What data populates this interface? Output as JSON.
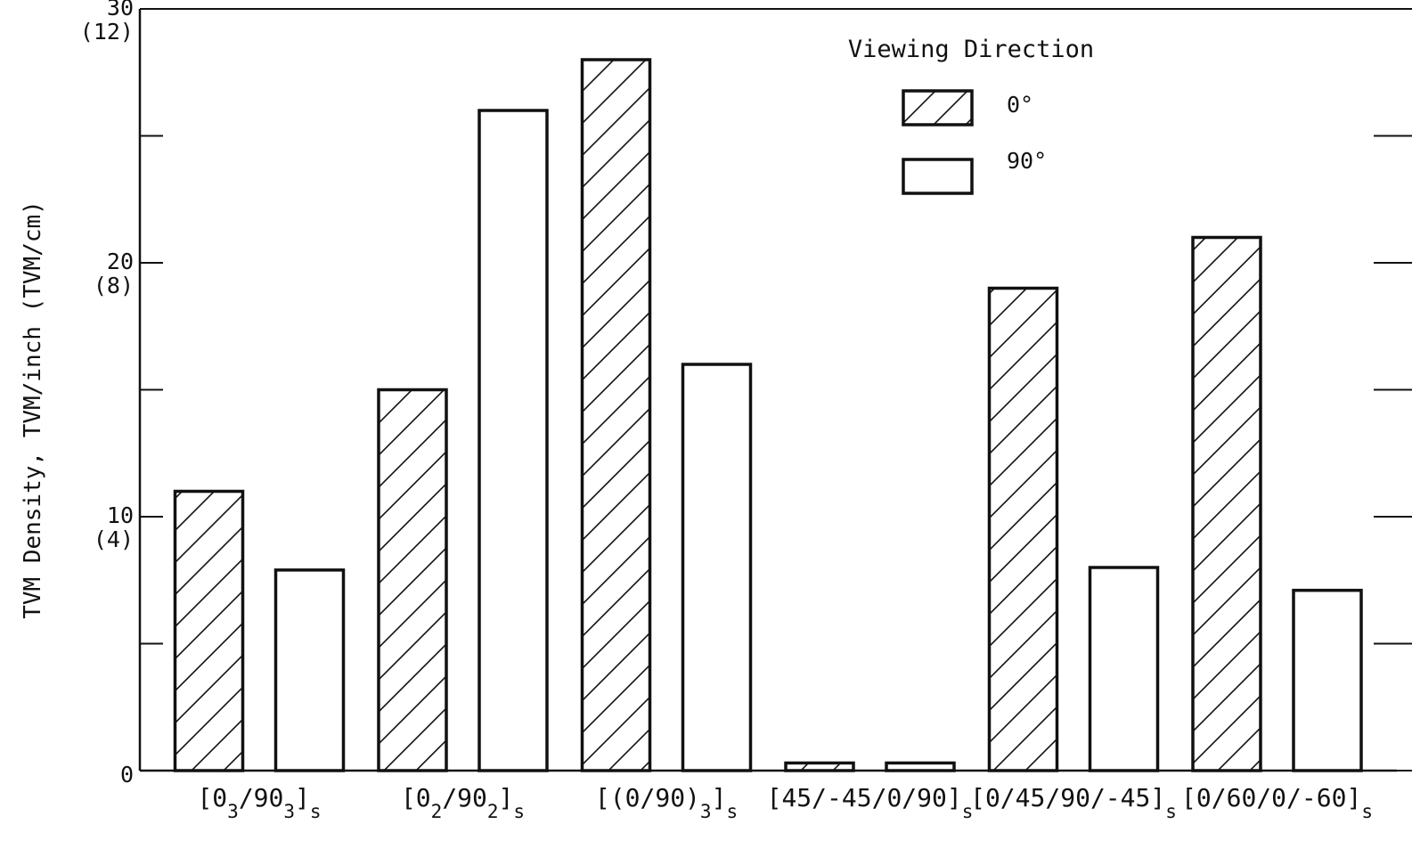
{
  "chart_data": {
    "type": "bar",
    "ylabel": "TVM Density, TVM/inch (TVM/cm)",
    "ylim": [
      0,
      30
    ],
    "yticks": [
      {
        "value": 30,
        "label": "30",
        "secondary": "(12)"
      },
      {
        "value": 20,
        "label": "20",
        "secondary": "(8)"
      },
      {
        "value": 10,
        "label": "10",
        "secondary": "(4)"
      },
      {
        "value": 0,
        "label": "0",
        "secondary": ""
      }
    ],
    "minor_ticks": [
      5,
      15,
      25
    ],
    "categories": [
      {
        "base": "[0",
        "parts": [
          [
            "3",
            "sub"
          ],
          [
            "/90",
            "n"
          ],
          [
            "3",
            "sub"
          ],
          [
            "]",
            "n"
          ],
          [
            "s",
            "sub"
          ]
        ]
      },
      {
        "base": "[0",
        "parts": [
          [
            "2",
            "sub"
          ],
          [
            "/90",
            "n"
          ],
          [
            "2",
            "sub"
          ],
          [
            "]",
            "n"
          ],
          [
            "s",
            "sub"
          ]
        ]
      },
      {
        "base": "[(0/90)",
        "parts": [
          [
            "3",
            "sub"
          ],
          [
            "]",
            "n"
          ],
          [
            "s",
            "sub"
          ]
        ]
      },
      {
        "base": "[45/-45/0/90]",
        "parts": [
          [
            "s",
            "sub"
          ]
        ]
      },
      {
        "base": "[0/45/90/-45]",
        "parts": [
          [
            "s",
            "sub"
          ]
        ]
      },
      {
        "base": "[0/60/0/-60]",
        "parts": [
          [
            "s",
            "sub"
          ]
        ]
      }
    ],
    "legend": {
      "title": "Viewing Direction",
      "placement": "top-right"
    },
    "series": [
      {
        "name": "0°",
        "fill": "hatched",
        "values": [
          11.0,
          15.0,
          28.0,
          0.3,
          19.0,
          21.0
        ]
      },
      {
        "name": "90°",
        "fill": "open",
        "values": [
          7.9,
          26.0,
          16.0,
          0.3,
          8.0,
          7.1
        ]
      }
    ],
    "grid": false
  }
}
